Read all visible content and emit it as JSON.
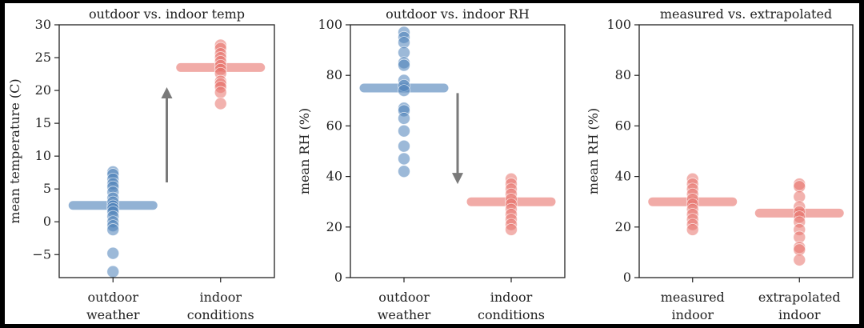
{
  "chart_data": [
    {
      "type": "scatter",
      "title": "outdoor vs. indoor temp",
      "ylabel": "mean temperature (C)",
      "ylim": [
        -8.5,
        30
      ],
      "yticks": [
        -5,
        0,
        5,
        10,
        15,
        20,
        25,
        30
      ],
      "categories": [
        [
          "outdoor",
          "weather"
        ],
        [
          "indoor",
          "conditions"
        ]
      ],
      "series": [
        {
          "color": "#4a7fb8",
          "mean": 2.5,
          "values": [
            7.6,
            7.2,
            6.5,
            5.8,
            5.3,
            4.5,
            3.6,
            3.0,
            2.4,
            2.0,
            1.5,
            0.8,
            0.0,
            -0.6,
            -1.2,
            -4.8,
            -7.6
          ]
        },
        {
          "color": "#e8736c",
          "mean": 23.5,
          "values": [
            26.9,
            26.4,
            25.6,
            25.0,
            24.4,
            23.8,
            23.2,
            22.6,
            21.4,
            21.0,
            20.5,
            19.7,
            18.0
          ]
        }
      ],
      "arrow": {
        "direction": "up",
        "from": 6,
        "to": 20.5
      }
    },
    {
      "type": "scatter",
      "title": "outdoor vs. indoor RH",
      "ylabel": "mean RH (%)",
      "ylim": [
        0,
        100
      ],
      "yticks": [
        0,
        20,
        40,
        60,
        80,
        100
      ],
      "categories": [
        [
          "outdoor",
          "weather"
        ],
        [
          "indoor",
          "conditions"
        ]
      ],
      "series": [
        {
          "color": "#4a7fb8",
          "mean": 75,
          "values": [
            97,
            95,
            93,
            89,
            85,
            84,
            78,
            76,
            74,
            67,
            66,
            63,
            58,
            52,
            47,
            42
          ]
        },
        {
          "color": "#e8736c",
          "mean": 30,
          "values": [
            39,
            37,
            35,
            33,
            31,
            29,
            27,
            25,
            23,
            21,
            19
          ]
        }
      ],
      "arrow": {
        "direction": "down",
        "from": 73,
        "to": 37
      }
    },
    {
      "type": "scatter",
      "title": "measured vs. extrapolated",
      "ylabel": "mean RH (%)",
      "ylim": [
        0,
        100
      ],
      "yticks": [
        0,
        20,
        40,
        60,
        80,
        100
      ],
      "categories": [
        [
          "measured",
          "indoor"
        ],
        [
          "extrapolated",
          "indoor"
        ]
      ],
      "series": [
        {
          "color": "#e8736c",
          "mean": 30,
          "values": [
            39,
            37,
            35,
            33,
            31,
            29,
            27,
            25,
            23,
            21,
            19
          ]
        },
        {
          "color": "#e8736c",
          "mean": 25.5,
          "values": [
            37,
            36,
            32,
            28,
            26,
            24,
            22,
            19,
            16,
            12,
            11,
            7
          ]
        }
      ]
    }
  ]
}
